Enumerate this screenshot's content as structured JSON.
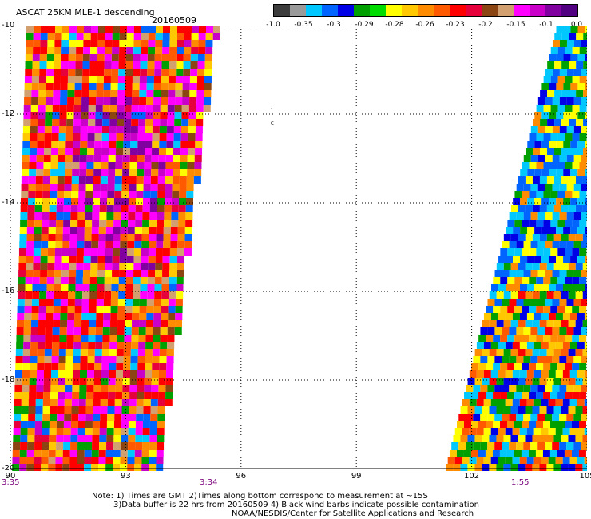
{
  "header": {
    "title": "ASCAT 25KM MLE-1 descending",
    "date": "20160509"
  },
  "colorbar": {
    "colors": [
      "#3d3d3d",
      "#9a9a9a",
      "#00c8ff",
      "#0064ff",
      "#0000e6",
      "#00a000",
      "#00dc00",
      "#ffff00",
      "#ffc800",
      "#ff8c00",
      "#ff5a00",
      "#ff0000",
      "#e6003c",
      "#8b4513",
      "#d2a06e",
      "#ff00ff",
      "#c800c8",
      "#8000a0",
      "#500080"
    ],
    "labels": [
      "-1.0",
      "-0.35",
      "-0.3",
      "-0.29",
      "-0.28",
      "-0.26",
      "-0.23",
      "-0.2",
      "-0.15",
      "-0.1",
      "0.0"
    ]
  },
  "axes": {
    "x_ticks": [
      "90",
      "93",
      "96",
      "99",
      "102",
      "105"
    ],
    "y_ticks": [
      "-10",
      "-12",
      "-14",
      "-16",
      "-18",
      "-20"
    ],
    "x_range": [
      90,
      105
    ],
    "y_range": [
      -20,
      -10
    ]
  },
  "swaths": {
    "left": {
      "lat_top": -10,
      "lat_bottom": -20,
      "lon_left": 90,
      "lon_right_top": 95.3,
      "lon_right_bottom": 93.8
    },
    "right": {
      "lat_top": -10,
      "lat_bottom": -20,
      "lon_right": 105,
      "lon_left_top": 104.2,
      "lon_left_bottom": 101.3
    }
  },
  "time_labels": [
    "3:35",
    "3:34",
    "1:55"
  ],
  "notes": {
    "line1": "Note: 1) Times are GMT 2)Times along bottom correspond to measurement at ~15S",
    "line2": "3)Data buffer is 22 hrs from 20160509 4) Black wind barbs indicate possible contamination",
    "line3": "NOAA/NESDIS/Center for Satellite Applications and Research"
  }
}
